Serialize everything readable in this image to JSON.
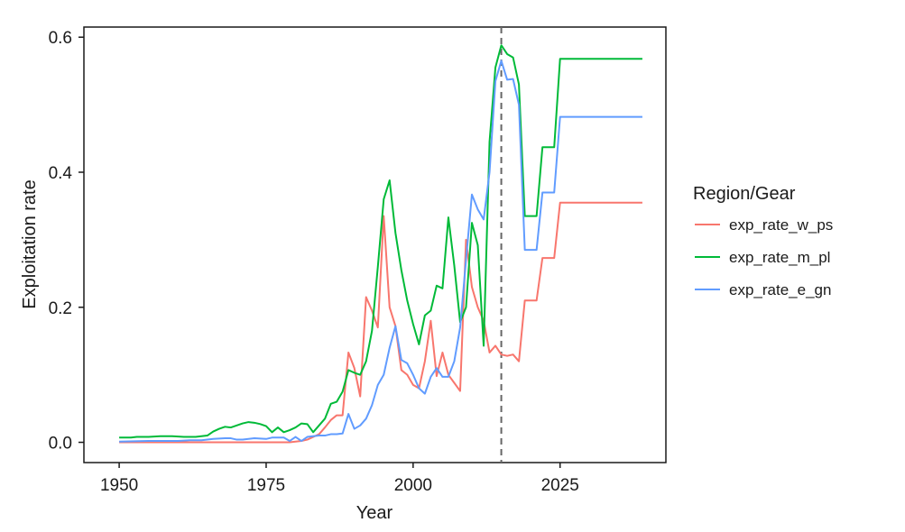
{
  "chart_data": {
    "type": "line",
    "title": "",
    "xlabel": "Year",
    "ylabel": "Exploitation rate",
    "xlim": [
      1944,
      2043
    ],
    "ylim": [
      -0.03,
      0.615
    ],
    "x_ticks": [
      1950,
      1975,
      2000,
      2025
    ],
    "y_ticks": [
      0.0,
      0.2,
      0.4,
      0.6
    ],
    "y_tick_labels": [
      "0.0",
      "0.2",
      "0.4",
      "0.6"
    ],
    "grid": false,
    "legend": {
      "title": "Region/Gear",
      "position": "right"
    },
    "reference_line": {
      "axis": "x",
      "value": 2015,
      "style": "dashed",
      "color": "#666666"
    },
    "series": [
      {
        "name": "exp_rate_w_ps",
        "color": "#F8766D",
        "points": [
          [
            1950,
            0
          ],
          [
            1955,
            0
          ],
          [
            1960,
            0
          ],
          [
            1965,
            0
          ],
          [
            1970,
            0
          ],
          [
            1975,
            0
          ],
          [
            1979,
            0
          ],
          [
            1980,
            0.001
          ],
          [
            1981,
            0.002
          ],
          [
            1982,
            0.004
          ],
          [
            1983,
            0.008
          ],
          [
            1984,
            0.012
          ],
          [
            1985,
            0.022
          ],
          [
            1986,
            0.033
          ],
          [
            1987,
            0.04
          ],
          [
            1988,
            0.04
          ],
          [
            1989,
            0.133
          ],
          [
            1990,
            0.11
          ],
          [
            1991,
            0.068
          ],
          [
            1992,
            0.215
          ],
          [
            1993,
            0.195
          ],
          [
            1994,
            0.17
          ],
          [
            1995,
            0.335
          ],
          [
            1996,
            0.2
          ],
          [
            1997,
            0.172
          ],
          [
            1998,
            0.107
          ],
          [
            1999,
            0.1
          ],
          [
            2000,
            0.085
          ],
          [
            2001,
            0.08
          ],
          [
            2002,
            0.12
          ],
          [
            2003,
            0.18
          ],
          [
            2004,
            0.098
          ],
          [
            2005,
            0.133
          ],
          [
            2006,
            0.1
          ],
          [
            2007,
            0.088
          ],
          [
            2008,
            0.076
          ],
          [
            2009,
            0.3
          ],
          [
            2010,
            0.23
          ],
          [
            2011,
            0.2
          ],
          [
            2012,
            0.18
          ],
          [
            2013,
            0.133
          ],
          [
            2014,
            0.143
          ],
          [
            2015,
            0.13
          ],
          [
            2016,
            0.128
          ],
          [
            2017,
            0.13
          ],
          [
            2018,
            0.12
          ],
          [
            2019,
            0.21
          ],
          [
            2020,
            0.21
          ],
          [
            2021,
            0.21
          ],
          [
            2022,
            0.273
          ],
          [
            2023,
            0.273
          ],
          [
            2024,
            0.273
          ],
          [
            2025,
            0.355
          ],
          [
            2030,
            0.355
          ],
          [
            2035,
            0.355
          ],
          [
            2039,
            0.355
          ]
        ]
      },
      {
        "name": "exp_rate_m_pl",
        "color": "#00BA38",
        "points": [
          [
            1950,
            0.007
          ],
          [
            1952,
            0.007
          ],
          [
            1953,
            0.008
          ],
          [
            1955,
            0.008
          ],
          [
            1957,
            0.009
          ],
          [
            1959,
            0.009
          ],
          [
            1961,
            0.008
          ],
          [
            1963,
            0.008
          ],
          [
            1965,
            0.01
          ],
          [
            1966,
            0.016
          ],
          [
            1967,
            0.02
          ],
          [
            1968,
            0.023
          ],
          [
            1969,
            0.022
          ],
          [
            1970,
            0.025
          ],
          [
            1971,
            0.028
          ],
          [
            1972,
            0.03
          ],
          [
            1973,
            0.029
          ],
          [
            1974,
            0.027
          ],
          [
            1975,
            0.024
          ],
          [
            1976,
            0.015
          ],
          [
            1977,
            0.022
          ],
          [
            1978,
            0.015
          ],
          [
            1979,
            0.018
          ],
          [
            1980,
            0.022
          ],
          [
            1981,
            0.028
          ],
          [
            1982,
            0.027
          ],
          [
            1983,
            0.015
          ],
          [
            1984,
            0.025
          ],
          [
            1985,
            0.035
          ],
          [
            1986,
            0.057
          ],
          [
            1987,
            0.06
          ],
          [
            1988,
            0.075
          ],
          [
            1989,
            0.107
          ],
          [
            1990,
            0.103
          ],
          [
            1991,
            0.1
          ],
          [
            1992,
            0.12
          ],
          [
            1993,
            0.165
          ],
          [
            1994,
            0.26
          ],
          [
            1995,
            0.36
          ],
          [
            1996,
            0.388
          ],
          [
            1997,
            0.31
          ],
          [
            1998,
            0.255
          ],
          [
            1999,
            0.21
          ],
          [
            2000,
            0.175
          ],
          [
            2001,
            0.145
          ],
          [
            2002,
            0.188
          ],
          [
            2003,
            0.195
          ],
          [
            2004,
            0.232
          ],
          [
            2005,
            0.228
          ],
          [
            2006,
            0.333
          ],
          [
            2007,
            0.262
          ],
          [
            2008,
            0.178
          ],
          [
            2009,
            0.2
          ],
          [
            2010,
            0.325
          ],
          [
            2011,
            0.292
          ],
          [
            2012,
            0.143
          ],
          [
            2013,
            0.445
          ],
          [
            2014,
            0.555
          ],
          [
            2015,
            0.588
          ],
          [
            2016,
            0.575
          ],
          [
            2017,
            0.57
          ],
          [
            2018,
            0.53
          ],
          [
            2019,
            0.335
          ],
          [
            2020,
            0.335
          ],
          [
            2021,
            0.335
          ],
          [
            2022,
            0.437
          ],
          [
            2023,
            0.437
          ],
          [
            2024,
            0.437
          ],
          [
            2025,
            0.568
          ],
          [
            2030,
            0.568
          ],
          [
            2035,
            0.568
          ],
          [
            2039,
            0.568
          ]
        ]
      },
      {
        "name": "exp_rate_e_gn",
        "color": "#619CFF",
        "points": [
          [
            1950,
            0.001
          ],
          [
            1955,
            0.002
          ],
          [
            1960,
            0.002
          ],
          [
            1962,
            0.003
          ],
          [
            1964,
            0.003
          ],
          [
            1965,
            0.004
          ],
          [
            1966,
            0.005
          ],
          [
            1968,
            0.006
          ],
          [
            1969,
            0.006
          ],
          [
            1970,
            0.004
          ],
          [
            1971,
            0.004
          ],
          [
            1972,
            0.005
          ],
          [
            1973,
            0.006
          ],
          [
            1975,
            0.005
          ],
          [
            1976,
            0.007
          ],
          [
            1978,
            0.007
          ],
          [
            1979,
            0.002
          ],
          [
            1980,
            0.008
          ],
          [
            1981,
            0.002
          ],
          [
            1982,
            0.008
          ],
          [
            1983,
            0.009
          ],
          [
            1984,
            0.01
          ],
          [
            1985,
            0.01
          ],
          [
            1986,
            0.012
          ],
          [
            1987,
            0.012
          ],
          [
            1988,
            0.013
          ],
          [
            1989,
            0.042
          ],
          [
            1990,
            0.02
          ],
          [
            1991,
            0.025
          ],
          [
            1992,
            0.035
          ],
          [
            1993,
            0.055
          ],
          [
            1994,
            0.085
          ],
          [
            1995,
            0.1
          ],
          [
            1996,
            0.14
          ],
          [
            1997,
            0.172
          ],
          [
            1998,
            0.122
          ],
          [
            1999,
            0.117
          ],
          [
            2000,
            0.1
          ],
          [
            2001,
            0.08
          ],
          [
            2002,
            0.072
          ],
          [
            2003,
            0.097
          ],
          [
            2004,
            0.11
          ],
          [
            2005,
            0.097
          ],
          [
            2006,
            0.097
          ],
          [
            2007,
            0.12
          ],
          [
            2008,
            0.17
          ],
          [
            2009,
            0.27
          ],
          [
            2010,
            0.367
          ],
          [
            2011,
            0.345
          ],
          [
            2012,
            0.33
          ],
          [
            2013,
            0.4
          ],
          [
            2014,
            0.535
          ],
          [
            2015,
            0.565
          ],
          [
            2016,
            0.537
          ],
          [
            2017,
            0.538
          ],
          [
            2018,
            0.5
          ],
          [
            2019,
            0.285
          ],
          [
            2020,
            0.285
          ],
          [
            2021,
            0.285
          ],
          [
            2022,
            0.37
          ],
          [
            2023,
            0.37
          ],
          [
            2024,
            0.37
          ],
          [
            2025,
            0.482
          ],
          [
            2030,
            0.482
          ],
          [
            2035,
            0.482
          ],
          [
            2039,
            0.482
          ]
        ]
      }
    ]
  }
}
